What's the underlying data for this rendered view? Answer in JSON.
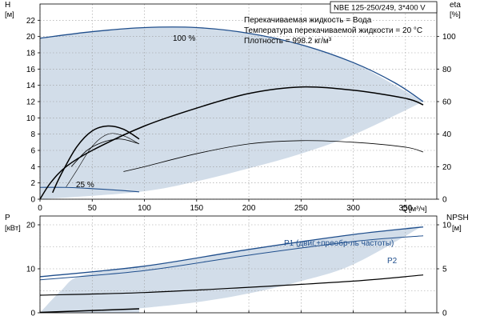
{
  "chart_data": [
    {
      "type": "line",
      "title": "NBE 125-250/249, 3*400 V",
      "annotations": [
        "Перекачиваемая жидкость = Вода",
        "Температура перекачиваемой жидкости = 20 °C",
        "Плотность = 998.2 кг/м³"
      ],
      "ylabel": "H",
      "yunit": "[м]",
      "y2label": "eta",
      "y2unit": "[%]",
      "xlabel": "Q",
      "xunit": "[м³/ч]",
      "xlim": [
        0,
        380
      ],
      "ylim": [
        0,
        24
      ],
      "y2lim": [
        0,
        120
      ],
      "x_ticks": [
        "0",
        "50",
        "100",
        "150",
        "200",
        "250",
        "300",
        "350"
      ],
      "y_ticks": [
        "0",
        "2",
        "4",
        "6",
        "8",
        "10",
        "12",
        "14",
        "16",
        "18",
        "20",
        "22"
      ],
      "y2_ticks": [
        "0",
        "20",
        "40",
        "60",
        "80",
        "100"
      ],
      "curve_labels": [
        "100 %",
        "25 %"
      ],
      "operating_region": {
        "upper": [
          [
            0,
            19.8
          ],
          [
            50,
            20.6
          ],
          [
            100,
            21.1
          ],
          [
            150,
            21.1
          ],
          [
            200,
            20.4
          ],
          [
            250,
            19.0
          ],
          [
            300,
            16.8
          ],
          [
            367,
            12.0
          ]
        ],
        "lower": [
          [
            0,
            0
          ],
          [
            95,
            0.9
          ],
          [
            150,
            2.2
          ],
          [
            200,
            3.8
          ],
          [
            250,
            5.6
          ],
          [
            300,
            7.9
          ],
          [
            367,
            12.0
          ]
        ]
      },
      "series": [
        {
          "name": "100 %",
          "axis": "left",
          "values": [
            [
              0,
              19.8
            ],
            [
              50,
              20.6
            ],
            [
              100,
              21.1
            ],
            [
              150,
              21.1
            ],
            [
              200,
              20.4
            ],
            [
              250,
              19.0
            ],
            [
              300,
              16.8
            ],
            [
              340,
              14.3
            ],
            [
              367,
              12.0
            ]
          ]
        },
        {
          "name": "25 %",
          "axis": "left",
          "values": [
            [
              0,
              1.45
            ],
            [
              25,
              1.45
            ],
            [
              50,
              1.3
            ],
            [
              75,
              1.1
            ],
            [
              95,
              0.9
            ]
          ]
        },
        {
          "axis": "right",
          "values": [
            [
              12,
              4
            ],
            [
              20,
              15
            ],
            [
              35,
              32
            ],
            [
              50,
              42
            ],
            [
              65,
              45
            ],
            [
              80,
              43
            ],
            [
              95,
              37
            ]
          ]
        },
        {
          "axis": "right",
          "values": [
            [
              30,
              20
            ],
            [
              45,
              30
            ],
            [
              60,
              35
            ],
            [
              75,
              37
            ],
            [
              85,
              36
            ],
            [
              95,
              34
            ]
          ]
        },
        {
          "axis": "right",
          "values": [
            [
              0,
              0
            ],
            [
              10,
              10
            ],
            [
              25,
              20
            ],
            [
              50,
              30
            ],
            [
              100,
              45
            ],
            [
              150,
              56
            ],
            [
              200,
              65
            ],
            [
              250,
              69
            ],
            [
              300,
              67
            ],
            [
              350,
              62
            ],
            [
              367,
              58
            ]
          ]
        },
        {
          "axis": "right",
          "values": [
            [
              80,
              17
            ],
            [
              100,
              20
            ],
            [
              150,
              28
            ],
            [
              200,
              34
            ],
            [
              250,
              36
            ],
            [
              300,
              35
            ],
            [
              350,
              32
            ],
            [
              367,
              29
            ]
          ]
        },
        {
          "axis": "left",
          "values": [
            [
              25,
              1.5
            ],
            [
              35,
              3.5
            ],
            [
              50,
              6.5
            ],
            [
              65,
              8.0
            ],
            [
              80,
              7.8
            ],
            [
              95,
              6.8
            ]
          ]
        }
      ]
    },
    {
      "type": "line",
      "ylabel": "P",
      "yunit": "[кВт]",
      "y2label": "NPSH",
      "y2unit": "[м]",
      "xlim": [
        0,
        380
      ],
      "ylim": [
        0,
        22
      ],
      "y2lim": [
        0,
        11
      ],
      "y_ticks": [
        "0",
        "10",
        "20"
      ],
      "y2_ticks": [
        "0",
        "5",
        "10"
      ],
      "series": [
        {
          "name": "P1 (двиг.+преобр-ль частоты)",
          "axis": "left",
          "values": [
            [
              0,
              8.2
            ],
            [
              100,
              10.6
            ],
            [
              200,
              14.4
            ],
            [
              300,
              17.8
            ],
            [
              367,
              19.5
            ]
          ]
        },
        {
          "name": "P2",
          "axis": "left",
          "values": [
            [
              0,
              7.5
            ],
            [
              100,
              9.6
            ],
            [
              200,
              13.1
            ],
            [
              300,
              16.2
            ],
            [
              367,
              17.5
            ]
          ]
        },
        {
          "axis": "right",
          "values": [
            [
              0,
              2.0
            ],
            [
              100,
              2.3
            ],
            [
              200,
              2.9
            ],
            [
              300,
              3.6
            ],
            [
              367,
              4.3
            ]
          ]
        },
        {
          "axis": "left",
          "values": [
            [
              0,
              0.1
            ],
            [
              95,
              0.9
            ]
          ]
        }
      ],
      "operating_region": {
        "upper": [
          [
            0,
            0
          ],
          [
            20,
            5
          ],
          [
            40,
            8.5
          ],
          [
            100,
            10.6
          ],
          [
            200,
            14.4
          ],
          [
            300,
            17.8
          ],
          [
            367,
            19.8
          ]
        ],
        "lower": [
          [
            95,
            1.0
          ],
          [
            150,
            2.4
          ],
          [
            200,
            4.4
          ],
          [
            250,
            7.2
          ],
          [
            300,
            11.0
          ],
          [
            367,
            19.8
          ]
        ]
      }
    }
  ]
}
